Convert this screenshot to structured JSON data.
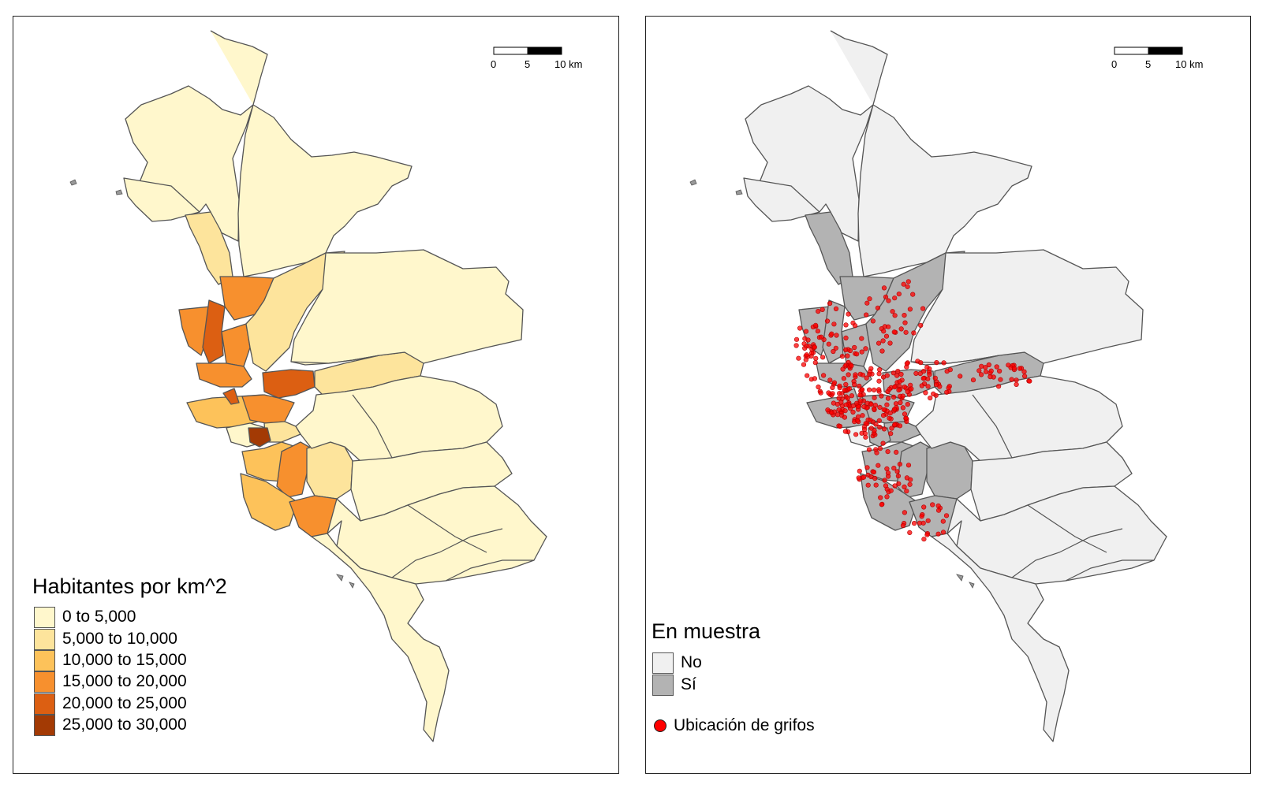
{
  "left_map": {
    "legend_title": "Habitantes por km^2",
    "classes": [
      {
        "label": "0 to 5,000",
        "color": "#fff7cc"
      },
      {
        "label": "5,000 to 10,000",
        "color": "#fde49c"
      },
      {
        "label": "10,000 to 15,000",
        "color": "#fdc25a"
      },
      {
        "label": "15,000 to 20,000",
        "color": "#f7902e"
      },
      {
        "label": "20,000 to 25,000",
        "color": "#dc5f12"
      },
      {
        "label": "25,000 to 30,000",
        "color": "#a33a04"
      }
    ],
    "scale_bar": {
      "ticks": [
        "0",
        "5",
        "10 km"
      ]
    }
  },
  "right_map": {
    "legend_title": "En muestra",
    "classes": [
      {
        "label": "No",
        "color": "#f0f0f0"
      },
      {
        "label": "Sí",
        "color": "#b3b3b3"
      }
    ],
    "point_label": "Ubicación de grifos",
    "point_color": "#ff0000",
    "scale_bar": {
      "ticks": [
        "0",
        "5",
        "10 km"
      ]
    }
  },
  "colors": {
    "border": "#555555",
    "panel_border": "#222222"
  }
}
